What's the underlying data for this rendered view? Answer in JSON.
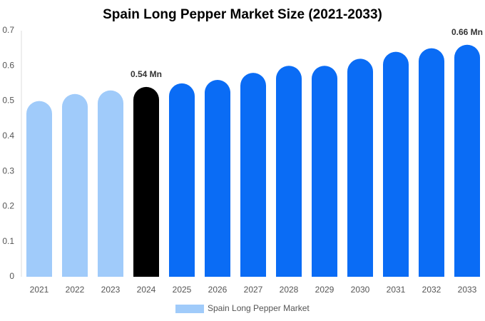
{
  "chart_data": {
    "type": "bar",
    "title": "Spain Long Pepper Market Size (2021-2033)",
    "categories": [
      "2021",
      "2022",
      "2023",
      "2024",
      "2025",
      "2026",
      "2027",
      "2028",
      "2029",
      "2030",
      "2031",
      "2032",
      "2033"
    ],
    "series": [
      {
        "name": "Spain Long Pepper Market",
        "color": "#a0cbfa",
        "values": [
          0.5,
          0.52,
          0.53,
          0.54,
          0.55,
          0.56,
          0.58,
          0.6,
          0.6,
          0.62,
          0.64,
          0.65,
          0.66
        ],
        "value_labels": [
          null,
          null,
          null,
          "0.54 Mn",
          null,
          null,
          null,
          null,
          null,
          null,
          null,
          null,
          "0.66 Mn"
        ],
        "bar_colors": [
          "#a0cbfa",
          "#a0cbfa",
          "#a0cbfa",
          "#000000",
          "#0a6cf5",
          "#0a6cf5",
          "#0a6cf5",
          "#0a6cf5",
          "#0a6cf5",
          "#0a6cf5",
          "#0a6cf5",
          "#0a6cf5",
          "#0a6cf5"
        ]
      }
    ],
    "ylim": [
      0,
      0.7
    ],
    "yticks": [
      0,
      0.1,
      0.2,
      0.3,
      0.4,
      0.5,
      0.6,
      0.7
    ],
    "grid": false
  }
}
